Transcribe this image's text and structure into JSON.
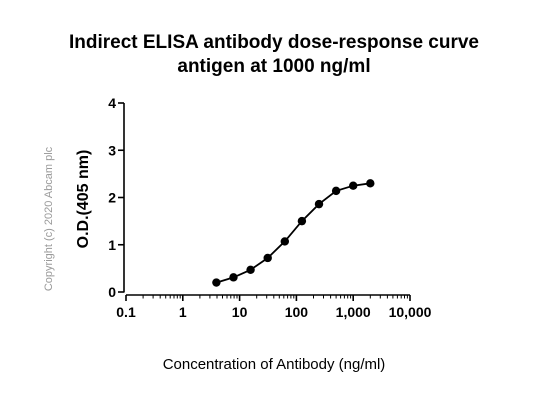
{
  "chart_data": {
    "type": "line",
    "title": "Indirect ELISA antibody dose-response curve",
    "subtitle": "antigen at 1000 ng/ml",
    "xlabel": "Concentration of Antibody (ng/ml)",
    "ylabel": "O.D.(405 nm)",
    "xscale": "log",
    "xlim": [
      0.1,
      10000
    ],
    "ylim": [
      0,
      4
    ],
    "x_ticks": [
      {
        "value": 0.1,
        "label": "0.1"
      },
      {
        "value": 1,
        "label": "1"
      },
      {
        "value": 10,
        "label": "10"
      },
      {
        "value": 100,
        "label": "100"
      },
      {
        "value": 1000,
        "label": "1,000"
      },
      {
        "value": 10000,
        "label": "10,000"
      }
    ],
    "y_ticks": [
      {
        "value": 0,
        "label": "0"
      },
      {
        "value": 1,
        "label": "1"
      },
      {
        "value": 2,
        "label": "2"
      },
      {
        "value": 3,
        "label": "3"
      },
      {
        "value": 4,
        "label": "4"
      }
    ],
    "grid": false,
    "series": [
      {
        "x": [
          3.9,
          7.8,
          15.6,
          31.25,
          62.5,
          125,
          250,
          500,
          1000,
          2000
        ],
        "y": [
          0.2,
          0.31,
          0.47,
          0.72,
          1.07,
          1.5,
          1.86,
          2.14,
          2.25,
          2.3
        ],
        "color": "#000000"
      }
    ]
  },
  "copyright": "Copyright (c) 2020 Abcam plc"
}
